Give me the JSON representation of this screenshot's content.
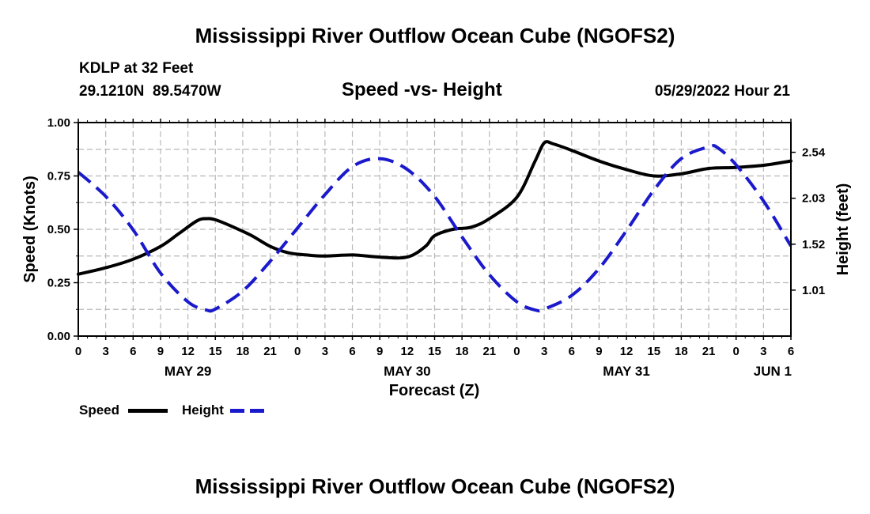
{
  "page": {
    "title_top": "Mississippi River Outflow Ocean Cube (NGOFS2)",
    "title_bottom": "Mississippi River Outflow Ocean Cube (NGOFS2)",
    "station": "KDLP at 32 Feet",
    "coords": "29.1210N  89.5470W",
    "subtitle": "Speed -vs- Height",
    "datetime": "05/29/2022 Hour 21"
  },
  "legend": {
    "speed_label": "Speed",
    "height_label": "Height"
  },
  "colors": {
    "speed": "#000000",
    "height": "#1a1acc",
    "grid": "#b8b8b8"
  },
  "chart_data": {
    "type": "line",
    "xlabel": "Forecast (Z)",
    "ylabel_left": "Speed (Knots)",
    "ylabel_right": "Height (feet)",
    "x_range_hours": [
      0,
      78
    ],
    "x_ticks": [
      {
        "h": 0,
        "label": "0"
      },
      {
        "h": 3,
        "label": "3"
      },
      {
        "h": 6,
        "label": "6"
      },
      {
        "h": 9,
        "label": "9"
      },
      {
        "h": 12,
        "label": "12"
      },
      {
        "h": 15,
        "label": "15"
      },
      {
        "h": 18,
        "label": "18"
      },
      {
        "h": 21,
        "label": "21"
      },
      {
        "h": 24,
        "label": "0"
      },
      {
        "h": 27,
        "label": "3"
      },
      {
        "h": 30,
        "label": "6"
      },
      {
        "h": 33,
        "label": "9"
      },
      {
        "h": 36,
        "label": "12"
      },
      {
        "h": 39,
        "label": "15"
      },
      {
        "h": 42,
        "label": "18"
      },
      {
        "h": 45,
        "label": "21"
      },
      {
        "h": 48,
        "label": "0"
      },
      {
        "h": 51,
        "label": "3"
      },
      {
        "h": 54,
        "label": "6"
      },
      {
        "h": 57,
        "label": "9"
      },
      {
        "h": 60,
        "label": "12"
      },
      {
        "h": 63,
        "label": "15"
      },
      {
        "h": 66,
        "label": "18"
      },
      {
        "h": 69,
        "label": "21"
      },
      {
        "h": 72,
        "label": "0"
      },
      {
        "h": 75,
        "label": "3"
      },
      {
        "h": 78,
        "label": "6"
      }
    ],
    "date_labels": [
      {
        "h": 12,
        "label": "MAY 29"
      },
      {
        "h": 36,
        "label": "MAY 30"
      },
      {
        "h": 60,
        "label": "MAY 31"
      },
      {
        "h": 76,
        "label": "JUN 1"
      }
    ],
    "y_left": {
      "range": [
        0,
        1.0
      ],
      "ticks": [
        0.0,
        0.25,
        0.5,
        0.75,
        1.0
      ],
      "tick_labels": [
        "0.00",
        "0.25",
        "0.50",
        "0.75",
        "1.00"
      ]
    },
    "y_right": {
      "range": [
        0.5,
        2.87
      ],
      "ticks": [
        1.01,
        1.52,
        2.03,
        2.54
      ],
      "tick_labels": [
        "1.01",
        "1.52",
        "2.03",
        "2.54"
      ]
    },
    "series": [
      {
        "name": "Speed",
        "axis": "left",
        "style": "solid",
        "x": [
          0,
          3,
          6,
          9,
          11,
          13,
          14,
          15,
          17,
          19,
          21,
          23,
          25,
          27,
          30,
          33,
          36,
          38,
          39,
          41,
          43,
          45,
          48,
          50,
          51,
          52,
          54,
          57,
          60,
          63,
          66,
          69,
          72,
          75,
          78
        ],
        "y": [
          0.29,
          0.32,
          0.36,
          0.42,
          0.48,
          0.54,
          0.55,
          0.545,
          0.51,
          0.47,
          0.42,
          0.39,
          0.38,
          0.375,
          0.38,
          0.37,
          0.37,
          0.42,
          0.47,
          0.5,
          0.51,
          0.55,
          0.65,
          0.82,
          0.905,
          0.9,
          0.87,
          0.82,
          0.78,
          0.75,
          0.76,
          0.785,
          0.79,
          0.8,
          0.82
        ]
      },
      {
        "name": "Height",
        "axis": "right",
        "style": "dashed",
        "x": [
          0,
          3,
          6,
          9,
          12,
          14,
          15,
          18,
          21,
          24,
          27,
          30,
          33,
          36,
          39,
          42,
          45,
          48,
          50,
          51,
          54,
          57,
          60,
          63,
          66,
          69,
          70,
          72,
          75,
          78
        ],
        "y": [
          2.32,
          2.05,
          1.68,
          1.2,
          0.88,
          0.79,
          0.8,
          1.0,
          1.33,
          1.7,
          2.07,
          2.38,
          2.47,
          2.35,
          2.05,
          1.6,
          1.18,
          0.88,
          0.79,
          0.8,
          0.95,
          1.25,
          1.67,
          2.12,
          2.47,
          2.6,
          2.59,
          2.4,
          2.0,
          1.5
        ]
      }
    ]
  }
}
